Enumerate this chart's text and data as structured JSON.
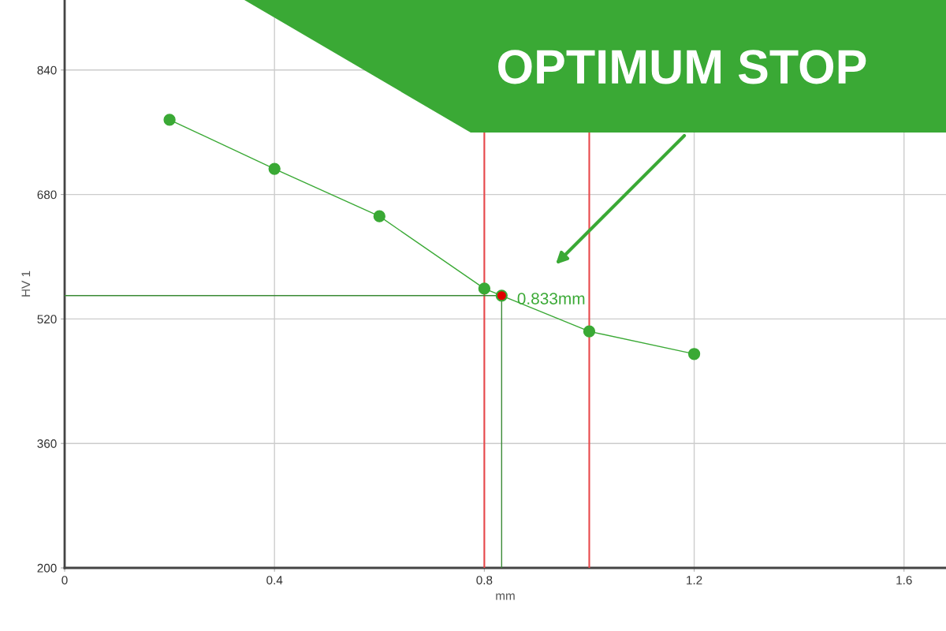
{
  "chart_data": {
    "type": "line",
    "xlabel": "mm",
    "ylabel": "HV 1",
    "x": [
      0.2,
      0.4,
      0.6,
      0.8,
      1.0,
      1.2
    ],
    "series": [
      {
        "color": "#3aa935",
        "values": [
          776,
          713,
          652,
          559,
          504,
          475
        ],
        "marker": "circle"
      },
      {
        "type": "scatter",
        "color": "#e00000",
        "x": [
          0.833
        ],
        "values": [
          550
        ],
        "marker": "circle"
      }
    ],
    "xlim": [
      0,
      1.68
    ],
    "ylim": [
      200,
      930
    ],
    "xticks": [
      0,
      0.4,
      0.8,
      1.2,
      1.6
    ],
    "yticks": [
      200,
      360,
      520,
      680,
      840
    ],
    "grid": true,
    "ref_lines": [
      {
        "axis": "x",
        "value": 0.8,
        "color": "#e8474a"
      },
      {
        "axis": "x",
        "value": 1.0,
        "color": "#e8474a"
      },
      {
        "axis": "y",
        "value": 550,
        "color": "#3a8a35"
      },
      {
        "axis": "x",
        "value": 0.833,
        "color": "#3a8a35"
      }
    ],
    "annotations": [
      {
        "text": "0.833mm",
        "x": 0.833,
        "y": 550
      },
      "OPTIMUM STOP"
    ]
  }
}
